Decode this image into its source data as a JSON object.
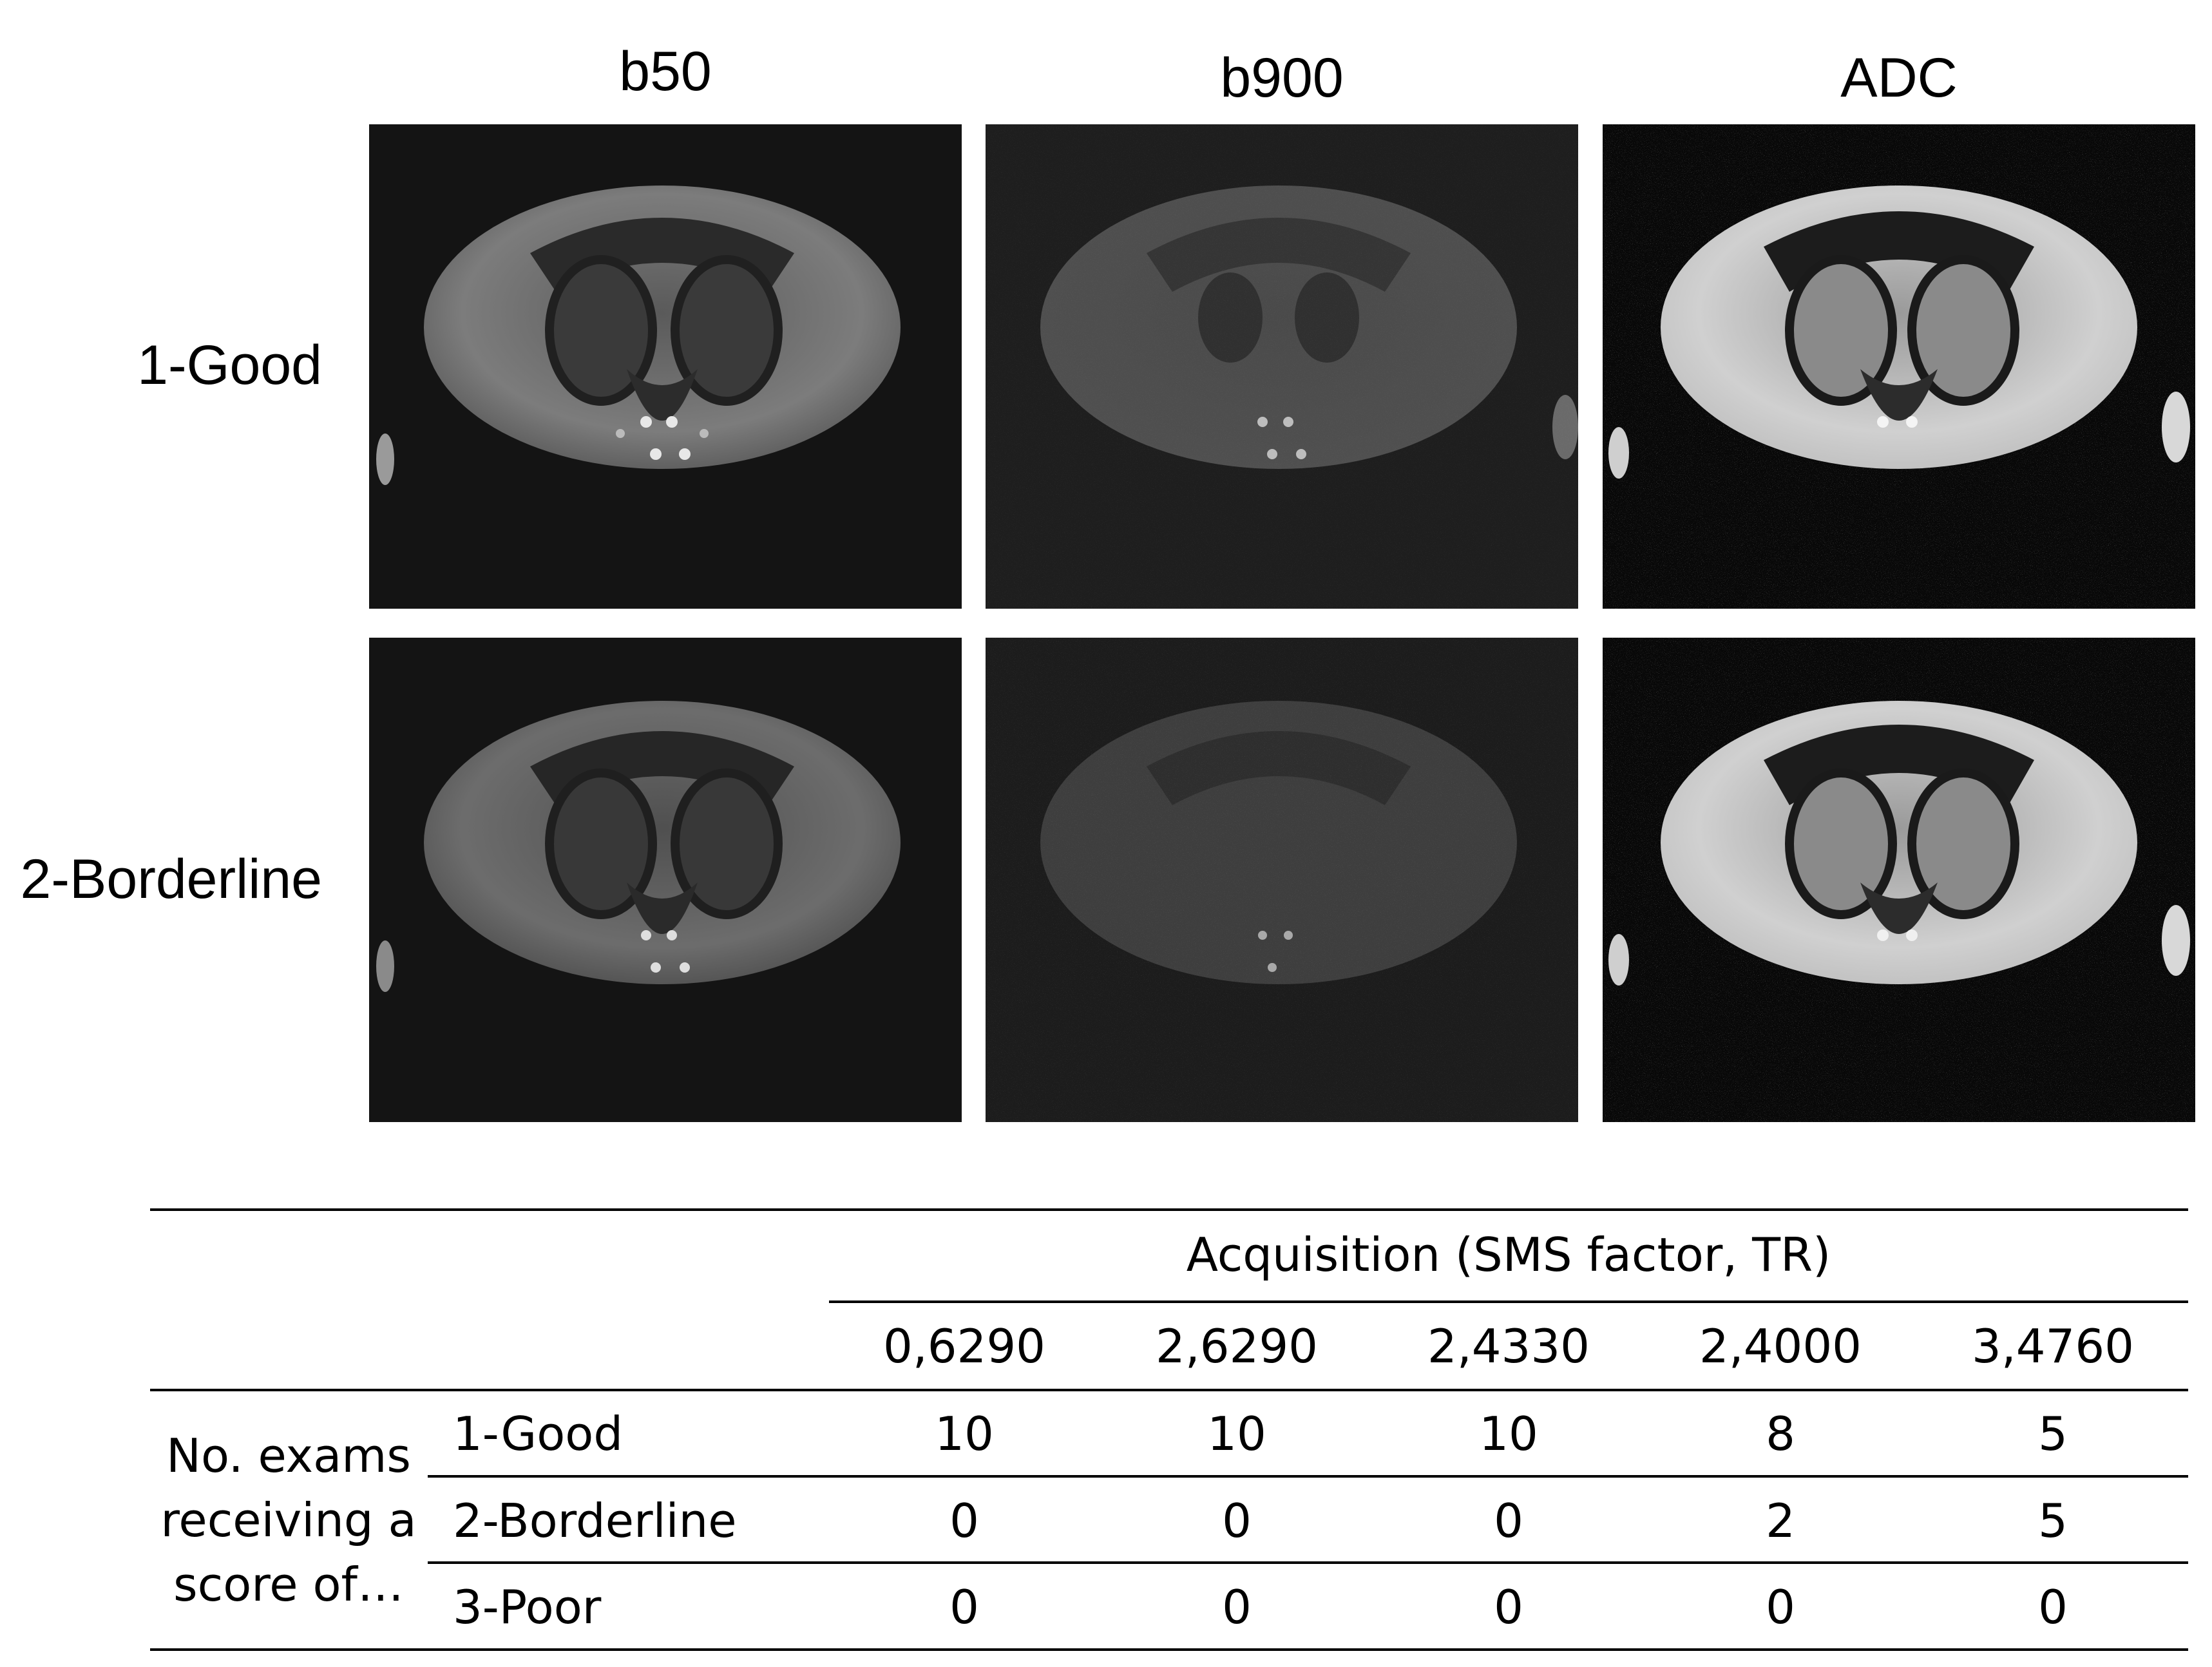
{
  "figure": {
    "columns": [
      "b50",
      "b900",
      "ADC"
    ],
    "rows": [
      "1-Good",
      "2-Borderline"
    ],
    "panel_icons": [
      "mri-b50-good",
      "mri-b900-good",
      "mri-adc-good",
      "mri-b50-borderline",
      "mri-b900-borderline",
      "mri-adc-borderline"
    ]
  },
  "table": {
    "group_header": "Acquisition (SMS factor, TR)",
    "acquisitions": [
      "0,6290",
      "2,6290",
      "2,4330",
      "2,4000",
      "3,4760"
    ],
    "row_group_label": [
      "No. exams",
      "receiving a",
      "score of…"
    ],
    "rows": [
      {
        "label": "1-Good",
        "values": [
          "10",
          "10",
          "10",
          "8",
          "5"
        ]
      },
      {
        "label": "2-Borderline",
        "values": [
          "0",
          "0",
          "0",
          "2",
          "5"
        ]
      },
      {
        "label": "3-Poor",
        "values": [
          "0",
          "0",
          "0",
          "0",
          "0"
        ]
      }
    ]
  }
}
